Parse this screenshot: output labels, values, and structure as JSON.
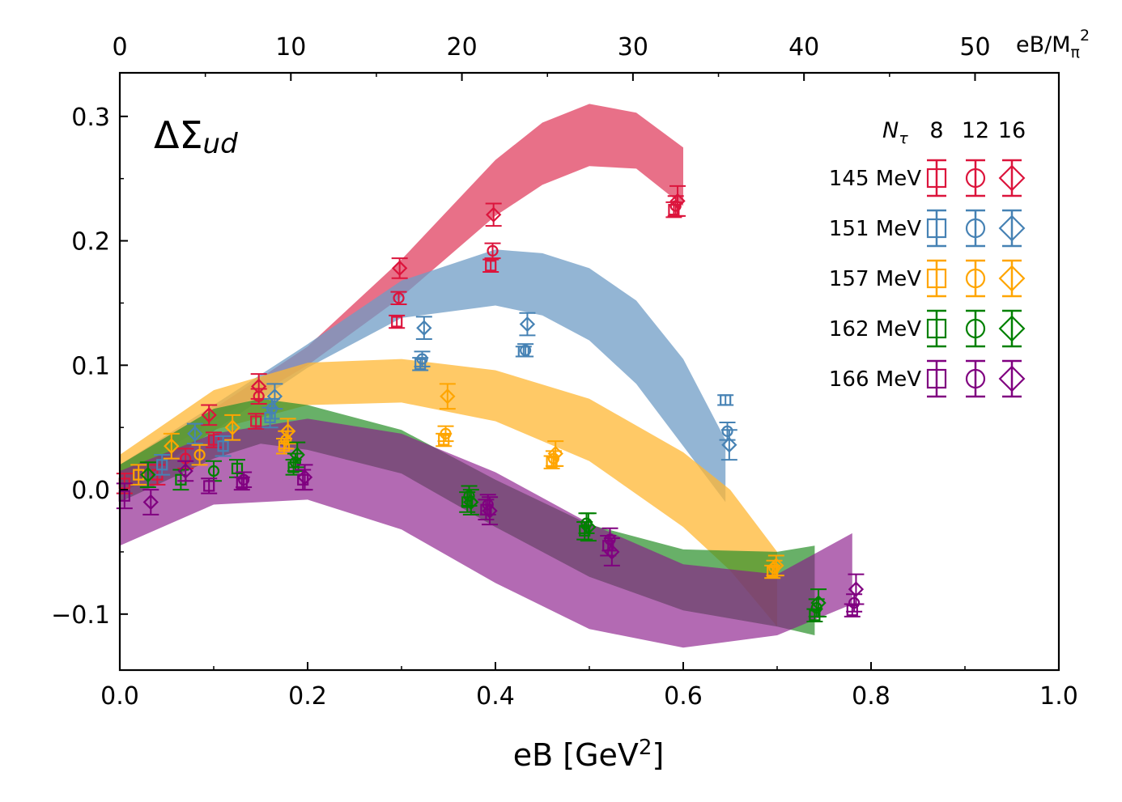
{
  "chart_data": {
    "type": "scatter",
    "panel_label": "ΔΣ",
    "panel_label_sub": "ud",
    "xlabel": "eB [GeV",
    "xlabel_sup": "2",
    "xlabel_tail": "]",
    "top_xlabel_pre": "eB/M",
    "top_xlabel_sub": "π",
    "top_xlabel_sup": "2",
    "xlim": [
      0.0,
      1.0
    ],
    "ylim": [
      -0.145,
      0.335
    ],
    "top_xlim": [
      0,
      54.9
    ],
    "x_ticks": [
      "0.0",
      "0.2",
      "0.4",
      "0.6",
      "0.8",
      "1.0"
    ],
    "x_tick_values": [
      0.0,
      0.2,
      0.4,
      0.6,
      0.8,
      1.0
    ],
    "y_ticks": [
      "−0.1",
      "0.0",
      "0.1",
      "0.2",
      "0.3"
    ],
    "y_tick_values": [
      -0.1,
      0.0,
      0.1,
      0.2,
      0.3
    ],
    "top_ticks": [
      "0",
      "10",
      "20",
      "30",
      "40",
      "50"
    ],
    "top_tick_values": [
      0,
      10,
      20,
      30,
      40,
      50
    ],
    "legend": {
      "nt_label": "N",
      "nt_sub": "τ",
      "columns": [
        "8",
        "12",
        "16"
      ],
      "markers": [
        "square",
        "circle",
        "diamond"
      ],
      "rows": [
        {
          "label": "145 MeV",
          "color": "#dc143c"
        },
        {
          "label": "151 MeV",
          "color": "#4682b4"
        },
        {
          "label": "157 MeV",
          "color": "#ffa500"
        },
        {
          "label": "162 MeV",
          "color": "#008000"
        },
        {
          "label": "166 MeV",
          "color": "#800080"
        }
      ]
    },
    "bands": [
      {
        "name": "145 MeV",
        "color": "#e04060",
        "opacity": 0.75,
        "x": [
          0.0,
          0.1,
          0.2,
          0.3,
          0.4,
          0.45,
          0.5,
          0.55,
          0.6
        ],
        "upper": [
          0.02,
          0.065,
          0.115,
          0.185,
          0.265,
          0.295,
          0.31,
          0.303,
          0.275
        ],
        "lower": [
          0.01,
          0.055,
          0.1,
          0.155,
          0.22,
          0.245,
          0.26,
          0.258,
          0.228
        ]
      },
      {
        "name": "151 MeV",
        "color": "#6f9cc6",
        "opacity": 0.75,
        "x": [
          0.0,
          0.1,
          0.2,
          0.3,
          0.4,
          0.45,
          0.5,
          0.55,
          0.6,
          0.645
        ],
        "upper": [
          0.02,
          0.068,
          0.117,
          0.168,
          0.193,
          0.19,
          0.178,
          0.152,
          0.105,
          0.04
        ],
        "lower": [
          0.0,
          0.047,
          0.098,
          0.138,
          0.148,
          0.14,
          0.12,
          0.085,
          0.035,
          -0.01
        ]
      },
      {
        "name": "157 MeV",
        "color": "#ffb733",
        "opacity": 0.75,
        "x": [
          0.0,
          0.1,
          0.2,
          0.3,
          0.4,
          0.5,
          0.6,
          0.65,
          0.7
        ],
        "upper": [
          0.028,
          0.08,
          0.102,
          0.105,
          0.096,
          0.073,
          0.03,
          0.0,
          -0.05
        ],
        "lower": [
          -0.005,
          0.048,
          0.068,
          0.07,
          0.055,
          0.023,
          -0.03,
          -0.065,
          -0.11
        ]
      },
      {
        "name": "162 MeV",
        "color": "#2e922e",
        "opacity": 0.72,
        "x": [
          0.0,
          0.1,
          0.15,
          0.2,
          0.3,
          0.4,
          0.5,
          0.6,
          0.7,
          0.74
        ],
        "upper": [
          0.02,
          0.065,
          0.073,
          0.068,
          0.048,
          0.008,
          -0.028,
          -0.048,
          -0.05,
          -0.045
        ],
        "lower": [
          -0.01,
          0.025,
          0.037,
          0.032,
          0.013,
          -0.03,
          -0.07,
          -0.097,
          -0.11,
          -0.117
        ]
      },
      {
        "name": "166 MeV",
        "color": "#8b1a8b",
        "opacity": 0.65,
        "x": [
          0.0,
          0.1,
          0.2,
          0.3,
          0.4,
          0.5,
          0.6,
          0.7,
          0.78
        ],
        "upper": [
          0.015,
          0.045,
          0.057,
          0.045,
          0.014,
          -0.027,
          -0.06,
          -0.068,
          -0.035
        ],
        "lower": [
          -0.045,
          -0.012,
          -0.008,
          -0.032,
          -0.075,
          -0.112,
          -0.127,
          -0.117,
          -0.092
        ]
      }
    ],
    "series": [
      {
        "name": "145 MeV",
        "color": "#dc143c",
        "points": [
          {
            "x": 0.005,
            "y": 0.005,
            "err": 0.008,
            "m": "square"
          },
          {
            "x": 0.04,
            "y": 0.012,
            "err": 0.008,
            "m": "square"
          },
          {
            "x": 0.07,
            "y": 0.025,
            "err": 0.008,
            "m": "circle"
          },
          {
            "x": 0.095,
            "y": 0.06,
            "err": 0.008,
            "m": "diamond"
          },
          {
            "x": 0.1,
            "y": 0.04,
            "err": 0.006,
            "m": "square"
          },
          {
            "x": 0.145,
            "y": 0.055,
            "err": 0.006,
            "m": "square"
          },
          {
            "x": 0.148,
            "y": 0.075,
            "err": 0.006,
            "m": "circle"
          },
          {
            "x": 0.148,
            "y": 0.083,
            "err": 0.01,
            "m": "diamond"
          },
          {
            "x": 0.295,
            "y": 0.135,
            "err": 0.005,
            "m": "square"
          },
          {
            "x": 0.297,
            "y": 0.154,
            "err": 0.005,
            "m": "circle"
          },
          {
            "x": 0.298,
            "y": 0.178,
            "err": 0.008,
            "m": "diamond"
          },
          {
            "x": 0.395,
            "y": 0.18,
            "err": 0.005,
            "m": "square"
          },
          {
            "x": 0.397,
            "y": 0.192,
            "err": 0.006,
            "m": "circle"
          },
          {
            "x": 0.398,
            "y": 0.221,
            "err": 0.009,
            "m": "diamond"
          },
          {
            "x": 0.59,
            "y": 0.225,
            "err": 0.006,
            "m": "square"
          },
          {
            "x": 0.592,
            "y": 0.228,
            "err": 0.008,
            "m": "circle"
          },
          {
            "x": 0.594,
            "y": 0.232,
            "err": 0.012,
            "m": "diamond"
          }
        ]
      },
      {
        "name": "151 MeV",
        "color": "#4682b4",
        "points": [
          {
            "x": 0.045,
            "y": 0.02,
            "err": 0.008,
            "m": "square"
          },
          {
            "x": 0.08,
            "y": 0.045,
            "err": 0.008,
            "m": "diamond"
          },
          {
            "x": 0.11,
            "y": 0.035,
            "err": 0.008,
            "m": "square"
          },
          {
            "x": 0.16,
            "y": 0.058,
            "err": 0.008,
            "m": "square"
          },
          {
            "x": 0.162,
            "y": 0.065,
            "err": 0.008,
            "m": "circle"
          },
          {
            "x": 0.165,
            "y": 0.075,
            "err": 0.01,
            "m": "diamond"
          },
          {
            "x": 0.32,
            "y": 0.101,
            "err": 0.005,
            "m": "square"
          },
          {
            "x": 0.322,
            "y": 0.105,
            "err": 0.006,
            "m": "circle"
          },
          {
            "x": 0.324,
            "y": 0.13,
            "err": 0.009,
            "m": "diamond"
          },
          {
            "x": 0.43,
            "y": 0.111,
            "err": 0.004,
            "m": "square"
          },
          {
            "x": 0.432,
            "y": 0.112,
            "err": 0.005,
            "m": "circle"
          },
          {
            "x": 0.434,
            "y": 0.133,
            "err": 0.009,
            "m": "diamond"
          },
          {
            "x": 0.645,
            "y": 0.072,
            "err": 0.004,
            "m": "square"
          },
          {
            "x": 0.647,
            "y": 0.047,
            "err": 0.007,
            "m": "circle"
          },
          {
            "x": 0.649,
            "y": 0.036,
            "err": 0.012,
            "m": "diamond"
          }
        ]
      },
      {
        "name": "157 MeV",
        "color": "#ffa500",
        "points": [
          {
            "x": 0.02,
            "y": 0.012,
            "err": 0.008,
            "m": "square"
          },
          {
            "x": 0.055,
            "y": 0.035,
            "err": 0.01,
            "m": "diamond"
          },
          {
            "x": 0.085,
            "y": 0.028,
            "err": 0.008,
            "m": "circle"
          },
          {
            "x": 0.12,
            "y": 0.05,
            "err": 0.01,
            "m": "diamond"
          },
          {
            "x": 0.175,
            "y": 0.035,
            "err": 0.006,
            "m": "square"
          },
          {
            "x": 0.177,
            "y": 0.04,
            "err": 0.007,
            "m": "circle"
          },
          {
            "x": 0.179,
            "y": 0.047,
            "err": 0.01,
            "m": "diamond"
          },
          {
            "x": 0.345,
            "y": 0.04,
            "err": 0.005,
            "m": "square"
          },
          {
            "x": 0.347,
            "y": 0.045,
            "err": 0.006,
            "m": "circle"
          },
          {
            "x": 0.349,
            "y": 0.075,
            "err": 0.01,
            "m": "diamond"
          },
          {
            "x": 0.46,
            "y": 0.022,
            "err": 0.005,
            "m": "square"
          },
          {
            "x": 0.462,
            "y": 0.025,
            "err": 0.006,
            "m": "circle"
          },
          {
            "x": 0.464,
            "y": 0.029,
            "err": 0.01,
            "m": "diamond"
          },
          {
            "x": 0.695,
            "y": -0.066,
            "err": 0.005,
            "m": "square"
          },
          {
            "x": 0.697,
            "y": -0.063,
            "err": 0.006,
            "m": "circle"
          },
          {
            "x": 0.699,
            "y": -0.061,
            "err": 0.008,
            "m": "diamond"
          }
        ]
      },
      {
        "name": "162 MeV",
        "color": "#008000",
        "points": [
          {
            "x": 0.03,
            "y": 0.012,
            "err": 0.01,
            "m": "diamond"
          },
          {
            "x": 0.065,
            "y": 0.008,
            "err": 0.008,
            "m": "square"
          },
          {
            "x": 0.1,
            "y": 0.015,
            "err": 0.008,
            "m": "circle"
          },
          {
            "x": 0.125,
            "y": 0.017,
            "err": 0.007,
            "m": "square"
          },
          {
            "x": 0.185,
            "y": 0.018,
            "err": 0.006,
            "m": "square"
          },
          {
            "x": 0.187,
            "y": 0.022,
            "err": 0.007,
            "m": "circle"
          },
          {
            "x": 0.189,
            "y": 0.028,
            "err": 0.01,
            "m": "diamond"
          },
          {
            "x": 0.37,
            "y": -0.01,
            "err": 0.008,
            "m": "square"
          },
          {
            "x": 0.372,
            "y": -0.005,
            "err": 0.008,
            "m": "circle"
          },
          {
            "x": 0.374,
            "y": -0.01,
            "err": 0.01,
            "m": "diamond"
          },
          {
            "x": 0.495,
            "y": -0.033,
            "err": 0.007,
            "m": "square"
          },
          {
            "x": 0.497,
            "y": -0.027,
            "err": 0.008,
            "m": "circle"
          },
          {
            "x": 0.499,
            "y": -0.03,
            "err": 0.011,
            "m": "diamond"
          },
          {
            "x": 0.74,
            "y": -0.101,
            "err": 0.005,
            "m": "square"
          },
          {
            "x": 0.742,
            "y": -0.095,
            "err": 0.007,
            "m": "circle"
          },
          {
            "x": 0.744,
            "y": -0.091,
            "err": 0.011,
            "m": "diamond"
          }
        ]
      },
      {
        "name": "166 MeV",
        "color": "#800080",
        "points": [
          {
            "x": 0.005,
            "y": -0.005,
            "err": 0.01,
            "m": "square"
          },
          {
            "x": 0.033,
            "y": -0.01,
            "err": 0.01,
            "m": "diamond"
          },
          {
            "x": 0.07,
            "y": 0.015,
            "err": 0.008,
            "m": "diamond"
          },
          {
            "x": 0.095,
            "y": 0.003,
            "err": 0.006,
            "m": "square"
          },
          {
            "x": 0.13,
            "y": 0.005,
            "err": 0.005,
            "m": "square"
          },
          {
            "x": 0.132,
            "y": 0.008,
            "err": 0.006,
            "m": "circle"
          },
          {
            "x": 0.195,
            "y": 0.008,
            "err": 0.008,
            "m": "square"
          },
          {
            "x": 0.197,
            "y": 0.01,
            "err": 0.01,
            "m": "diamond"
          },
          {
            "x": 0.39,
            "y": -0.016,
            "err": 0.008,
            "m": "square"
          },
          {
            "x": 0.392,
            "y": -0.012,
            "err": 0.008,
            "m": "circle"
          },
          {
            "x": 0.394,
            "y": -0.017,
            "err": 0.011,
            "m": "diamond"
          },
          {
            "x": 0.52,
            "y": -0.045,
            "err": 0.008,
            "m": "square"
          },
          {
            "x": 0.522,
            "y": -0.04,
            "err": 0.009,
            "m": "circle"
          },
          {
            "x": 0.524,
            "y": -0.05,
            "err": 0.011,
            "m": "diamond"
          },
          {
            "x": 0.78,
            "y": -0.097,
            "err": 0.005,
            "m": "square"
          },
          {
            "x": 0.782,
            "y": -0.091,
            "err": 0.007,
            "m": "circle"
          },
          {
            "x": 0.784,
            "y": -0.08,
            "err": 0.012,
            "m": "diamond"
          }
        ]
      }
    ]
  }
}
